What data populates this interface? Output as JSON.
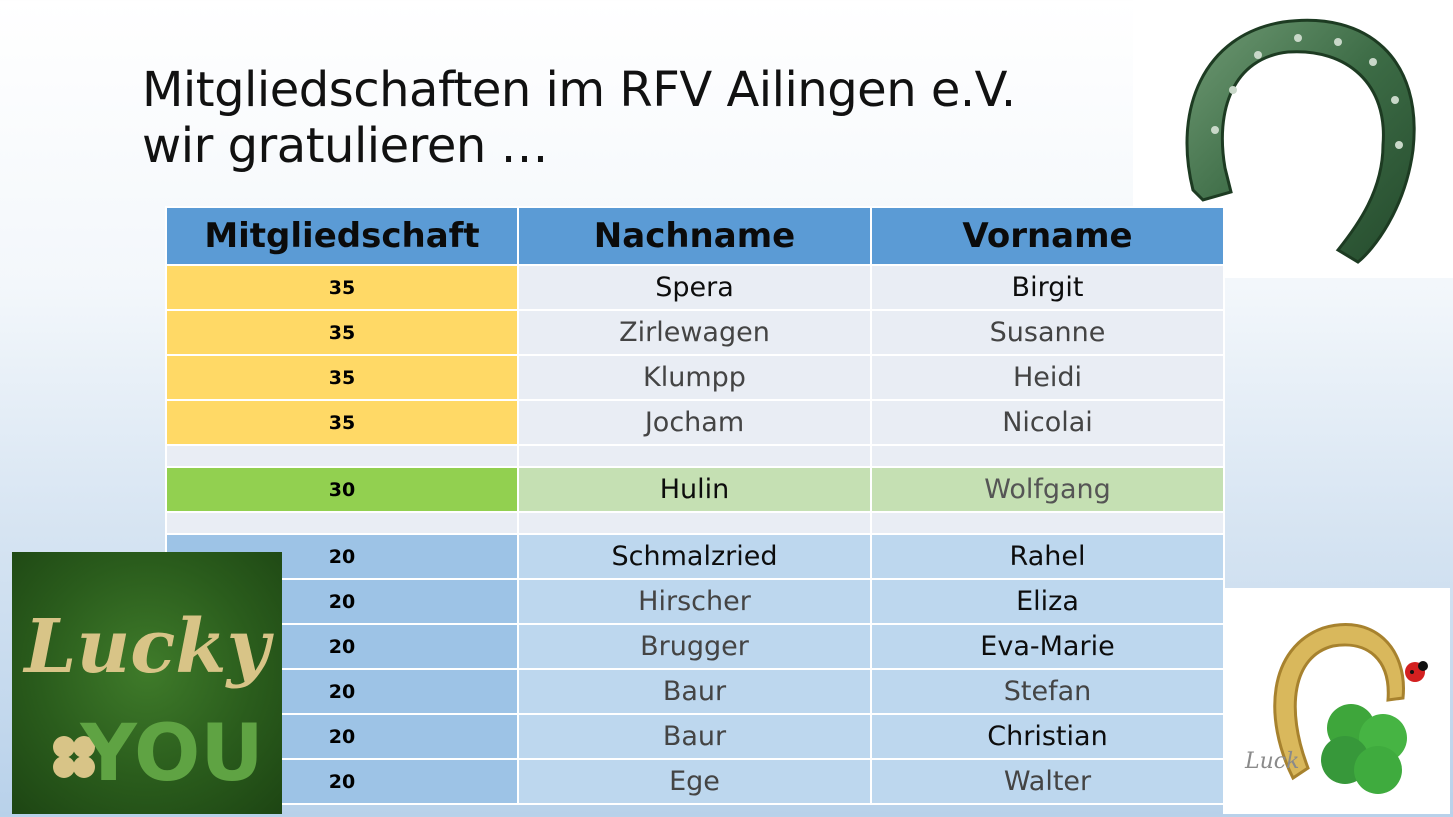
{
  "title": {
    "line1": "Mitgliedschaften im RFV Ailingen e.V.",
    "line2": "wir gratulieren …"
  },
  "table": {
    "headers": [
      "Mitgliedschaft",
      "Nachname",
      "Vorname"
    ],
    "rows": [
      {
        "years": "35",
        "last": "Spera",
        "first": "Birgit"
      },
      {
        "years": "35",
        "last": "Zirlewagen",
        "first": "Susanne"
      },
      {
        "years": "35",
        "last": "Klumpp",
        "first": "Heidi"
      },
      {
        "years": "35",
        "last": "Jocham",
        "first": "Nicolai"
      },
      {
        "years": "30",
        "last": "Hulin",
        "first": "Wolfgang"
      },
      {
        "years": "20",
        "last": "Schmalzried",
        "first": "Rahel"
      },
      {
        "years": "20",
        "last": "Hirscher",
        "first": "Eliza"
      },
      {
        "years": "20",
        "last": "Brugger",
        "first": "Eva-Marie"
      },
      {
        "years": "20",
        "last": "Baur",
        "first": "Stefan"
      },
      {
        "years": "20",
        "last": "Baur",
        "first": "Christian"
      },
      {
        "years": "20",
        "last": "Ege",
        "first": "Walter"
      }
    ]
  },
  "images": {
    "horseshoe": "green-horseshoe-image",
    "lucky": "lucky-you-image",
    "clover": "golden-horseshoe-clover-ladybug-image"
  },
  "lucky_badge": {
    "word1": "Lucky",
    "word2": "YOU"
  },
  "clover_badge": {
    "word": "Luck"
  },
  "colors": {
    "header": "#5b9bd5",
    "gold": "#ffd966",
    "green": "#92d050",
    "light_green": "#c5e0b3",
    "blue": "#bdd7ee",
    "row_grey": "#e9edf4"
  }
}
